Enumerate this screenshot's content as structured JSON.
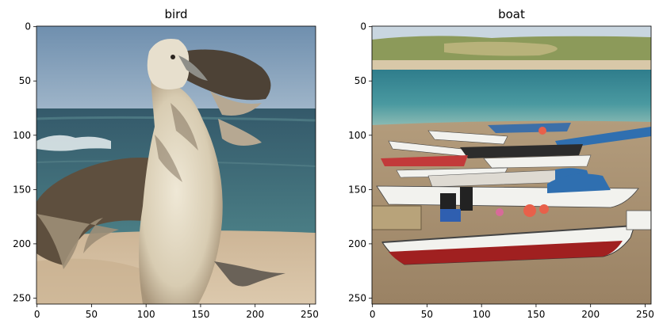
{
  "chart_data": [
    {
      "type": "image",
      "title": "bird",
      "image_subject": "seabird with wings spread standing on a sandy beach, sea and sky behind",
      "xlim": [
        0,
        256
      ],
      "ylim": [
        256,
        0
      ],
      "xticks": [
        0,
        50,
        100,
        150,
        200,
        250
      ],
      "yticks": [
        0,
        50,
        100,
        150,
        200,
        250
      ],
      "palette": {
        "sky": "#8aa6c0",
        "sky_top": "#6f8fae",
        "sea": "#3f6f7c",
        "sea_far": "#34596a",
        "surf": "#d9e4e6",
        "sand": "#d2bda0",
        "sand_dark": "#b89f80",
        "bird_light": "#e8e0cc",
        "bird_mid": "#b9a88a",
        "bird_dark": "#4a3f33",
        "beak": "#8c8c86"
      }
    },
    {
      "type": "image",
      "title": "boat",
      "image_subject": "colourful fishing boats pulled up on a sandy beach, sea and green dunes behind",
      "xlim": [
        0,
        256
      ],
      "ylim": [
        256,
        0
      ],
      "xticks": [
        0,
        50,
        100,
        150,
        200,
        250
      ],
      "yticks": [
        0,
        50,
        100,
        150,
        200,
        250
      ],
      "palette": {
        "sky": "#c9d6e0",
        "dunes": "#8c9a5a",
        "dunes_light": "#b8b27a",
        "beach_far": "#d8c8a8",
        "sea": "#3d8a96",
        "sea_light": "#6fb0b4",
        "sand": "#a89274",
        "sand_dark": "#8a7458",
        "boat_white": "#f2f2ee",
        "boat_red": "#a02020",
        "boat_blue": "#2f6fb0",
        "buoy": "#e8604a"
      }
    }
  ]
}
